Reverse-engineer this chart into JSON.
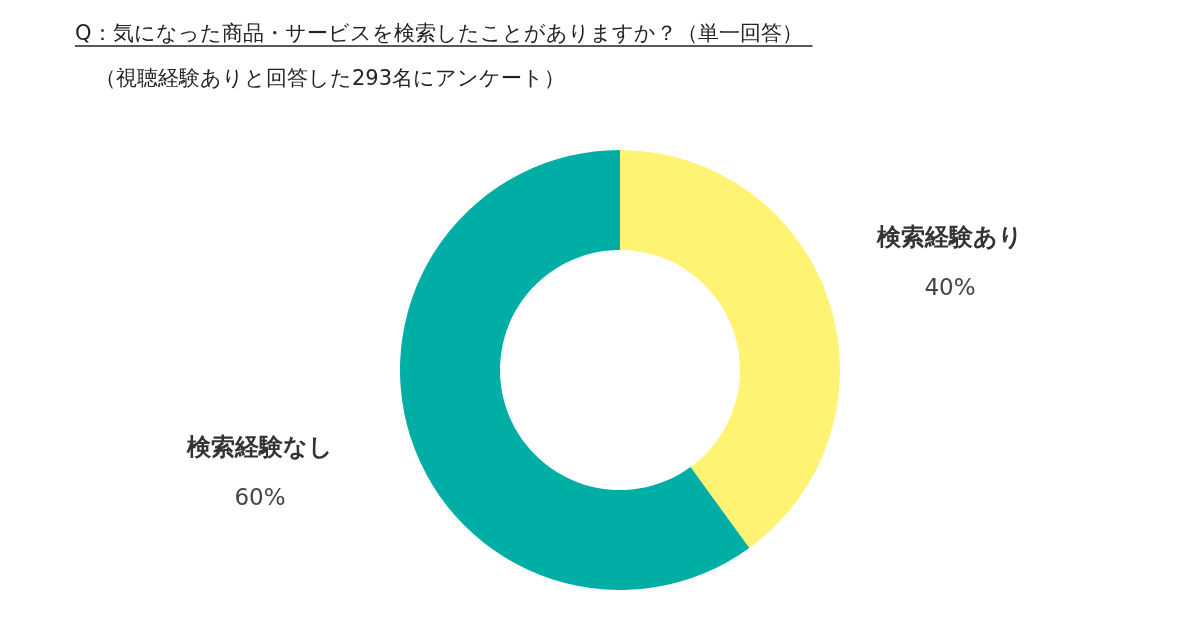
{
  "chart_data": {
    "type": "donut",
    "title": "Q：気になった商品・サービスを検索したことがありますか？（単一回答）",
    "subtitle": "（視聴経験ありと回答した293名にアンケート）",
    "categories": [
      "検索経験あり",
      "検索経験なし"
    ],
    "values": [
      40,
      60
    ],
    "colors": [
      "#fef373",
      "#00aea6"
    ],
    "value_labels": [
      "40%",
      "60%"
    ]
  }
}
